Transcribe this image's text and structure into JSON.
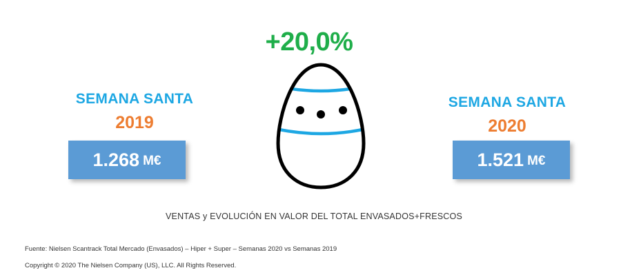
{
  "growth_label": "+20,0%",
  "periods": [
    {
      "label": "SEMANA SANTA",
      "year": "2019",
      "value": "1.268",
      "unit": "M€"
    },
    {
      "label": "SEMANA SANTA",
      "year": "2020",
      "value": "1.521",
      "unit": "M€"
    }
  ],
  "caption": "VENTAS y EVOLUCIÓN EN VALOR DEL TOTAL ENVASADOS+FRESCOS",
  "source": "Fuente: Nielsen Scantrack Total Mercado (Envasados)  – Hiper + Super – Semanas 2020 vs Semanas 2019",
  "copyright": "Copyright © 2020 The Nielsen Company (US), LLC. All Rights Reserved.",
  "icons": {
    "egg": "easter-egg-icon"
  },
  "colors": {
    "growth": "#1fae4a",
    "label": "#1da7e3",
    "year": "#ed7d31",
    "box": "#5b9bd5",
    "egg_stripe": "#1da7e3"
  }
}
